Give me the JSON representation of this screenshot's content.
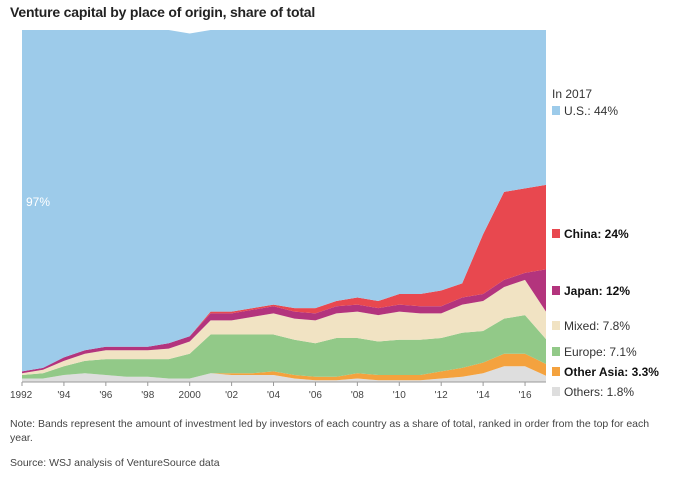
{
  "chart_data": {
    "type": "area",
    "title": "Venture capital by place of origin, share of total",
    "subtitle": "",
    "xlabel": "",
    "ylabel": "",
    "x": [
      1992,
      1993,
      1994,
      1995,
      1996,
      1997,
      1998,
      1999,
      2000,
      2001,
      2002,
      2003,
      2004,
      2005,
      2006,
      2007,
      2008,
      2009,
      2010,
      2011,
      2012,
      2013,
      2014,
      2015,
      2016,
      2017
    ],
    "xlim": [
      1992,
      2017
    ],
    "ylim": [
      0,
      100
    ],
    "x_tick_labels": [
      "1992",
      "'94",
      "'96",
      "'98",
      "2000",
      "'02",
      "'04",
      "'06",
      "'08",
      "'10",
      "'12",
      "'14",
      "'16"
    ],
    "annotation_97": "97%",
    "legend_header": "In 2017",
    "series": [
      {
        "name": "U.S.",
        "label": "U.S.: 44%",
        "color": "#9dcbea",
        "bold": false,
        "values": [
          97,
          96,
          93,
          91,
          90,
          90,
          90,
          89,
          86,
          80,
          80,
          79,
          78,
          79,
          79,
          77,
          76,
          77,
          75,
          75,
          74,
          72,
          58,
          46,
          45,
          44
        ]
      },
      {
        "name": "China",
        "label": "China: 24%",
        "color": "#e8484f",
        "bold": true,
        "values": [
          0,
          0,
          0,
          0,
          0,
          0,
          0,
          0,
          0,
          0.5,
          0.5,
          0.5,
          0.5,
          1,
          1.5,
          1.5,
          2,
          2,
          3,
          3.5,
          4.5,
          4,
          17,
          25,
          24,
          24
        ]
      },
      {
        "name": "Japan",
        "label": "Japan: 12%",
        "color": "#b3347d",
        "bold": true,
        "values": [
          0.5,
          0.5,
          1,
          1,
          1,
          1,
          1,
          1.5,
          1.5,
          2,
          2,
          2,
          2,
          2,
          2,
          2,
          2,
          2,
          2,
          2,
          2,
          2,
          2,
          2,
          2,
          12
        ]
      },
      {
        "name": "Mixed",
        "label": "Mixed: 7.8%",
        "color": "#f1e3c3",
        "bold": false,
        "values": [
          0.5,
          1,
          1.5,
          2,
          2.5,
          2.5,
          2.5,
          3,
          3.5,
          4,
          4,
          5,
          6,
          6,
          6.5,
          7,
          7.5,
          7.5,
          8,
          7.5,
          7,
          8,
          8.5,
          9,
          10,
          7.8
        ]
      },
      {
        "name": "Europe",
        "label": "Europe: 7.1%",
        "color": "#92c988",
        "bold": false,
        "values": [
          1,
          1.5,
          2.5,
          3.5,
          4.5,
          5,
          5,
          5.5,
          7,
          11,
          11,
          11,
          10.5,
          10,
          9.5,
          11,
          10,
          9.5,
          10,
          10,
          9.5,
          10,
          9,
          10,
          11,
          7.1
        ]
      },
      {
        "name": "Other Asia",
        "label": "Other Asia: 3.3%",
        "color": "#f4a23e",
        "bold": true,
        "values": [
          0,
          0,
          0,
          0,
          0,
          0,
          0,
          0,
          0,
          0,
          0.5,
          0.5,
          1,
          1,
          1,
          1,
          1.5,
          1.5,
          1.5,
          1.5,
          2,
          2.5,
          3,
          3.5,
          3.5,
          3.3
        ]
      },
      {
        "name": "Others",
        "label": "Others: 1.8%",
        "color": "#dedede",
        "bold": false,
        "values": [
          1,
          1,
          2,
          2.5,
          2,
          1.5,
          1.5,
          1,
          1,
          2.5,
          2,
          2,
          2,
          1,
          0.5,
          0.5,
          1,
          0.5,
          0.5,
          0.5,
          1,
          1.5,
          2.5,
          4.5,
          4.5,
          1.8
        ]
      }
    ]
  },
  "note": "Note: Bands represent the amount of investment led by investors of each country as a share of total, ranked in order from the top for each year.",
  "source": "Source: WSJ analysis of VentureSource data"
}
